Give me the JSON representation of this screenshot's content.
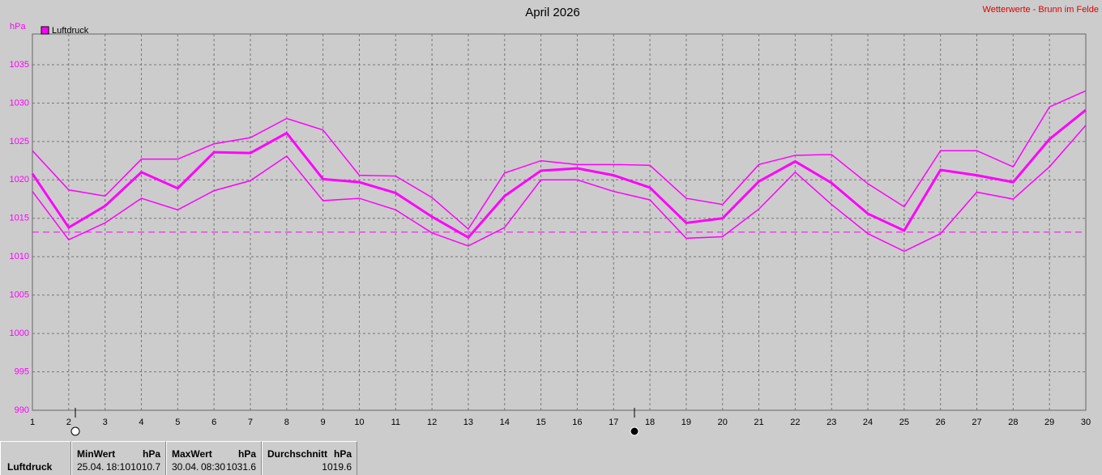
{
  "chart_data": {
    "type": "line",
    "title": "April 2026",
    "source": "Wetterwerte - Brunn im Felde",
    "y_unit": "hPa",
    "x": [
      1,
      2,
      3,
      4,
      5,
      6,
      7,
      8,
      9,
      10,
      11,
      12,
      13,
      14,
      15,
      16,
      17,
      18,
      19,
      20,
      21,
      22,
      23,
      24,
      25,
      26,
      27,
      28,
      29,
      30
    ],
    "xlim": [
      1,
      30
    ],
    "xticks": [
      1,
      2,
      3,
      4,
      5,
      6,
      7,
      8,
      9,
      10,
      11,
      12,
      13,
      14,
      15,
      16,
      17,
      18,
      19,
      20,
      21,
      22,
      23,
      24,
      25,
      26,
      27,
      28,
      29,
      30
    ],
    "ylim": [
      990,
      1039
    ],
    "yticks": [
      990,
      995,
      1000,
      1005,
      1010,
      1015,
      1020,
      1025,
      1030,
      1035
    ],
    "grid": true,
    "legend": "top-left",
    "reference_line": 1013.2,
    "series": [
      {
        "name": "Luftdruck",
        "color": "#ff00ff",
        "values": [
          1020.8,
          1013.8,
          1016.6,
          1021.0,
          1018.9,
          1023.6,
          1023.5,
          1026.1,
          1020.1,
          1019.7,
          1018.3,
          1015.2,
          1012.5,
          1017.9,
          1021.2,
          1021.5,
          1020.6,
          1019.0,
          1014.4,
          1015.0,
          1019.8,
          1022.4,
          1019.6,
          1015.6,
          1013.4,
          1021.3,
          1020.6,
          1019.7,
          1025.3,
          1029.1
        ]
      },
      {
        "color": "#ff00ff",
        "values": [
          1023.8,
          1018.7,
          1017.9,
          1022.7,
          1022.7,
          1024.7,
          1025.5,
          1028.0,
          1026.5,
          1020.6,
          1020.5,
          1017.7,
          1013.6,
          1020.9,
          1022.5,
          1022.0,
          1022.0,
          1021.9,
          1017.6,
          1016.8,
          1022.0,
          1023.2,
          1023.3,
          1019.5,
          1016.5,
          1023.8,
          1023.8,
          1021.7,
          1029.5,
          1031.6
        ]
      },
      {
        "color": "#ff00ff",
        "values": [
          1018.5,
          1012.2,
          1014.4,
          1017.6,
          1016.1,
          1018.6,
          1019.9,
          1023.1,
          1017.3,
          1017.6,
          1016.1,
          1013.1,
          1011.4,
          1013.8,
          1020.0,
          1020.0,
          1018.5,
          1017.4,
          1012.4,
          1012.6,
          1016.2,
          1021.0,
          1016.8,
          1013.0,
          1010.7,
          1013.0,
          1018.4,
          1017.5,
          1021.7,
          1027.1
        ]
      }
    ]
  },
  "summary": {
    "label": "Luftdruck",
    "min": {
      "title": "MinWert",
      "unit": "hPa",
      "date": "25.04.",
      "time": "18:10",
      "value": "1010.7"
    },
    "max": {
      "title": "MaxWert",
      "unit": "hPa",
      "date": "30.04.",
      "time": "08:30",
      "value": "1031.6"
    },
    "avg": {
      "title": "Durchschnitt",
      "unit": "hPa",
      "value": "1019.6"
    }
  }
}
